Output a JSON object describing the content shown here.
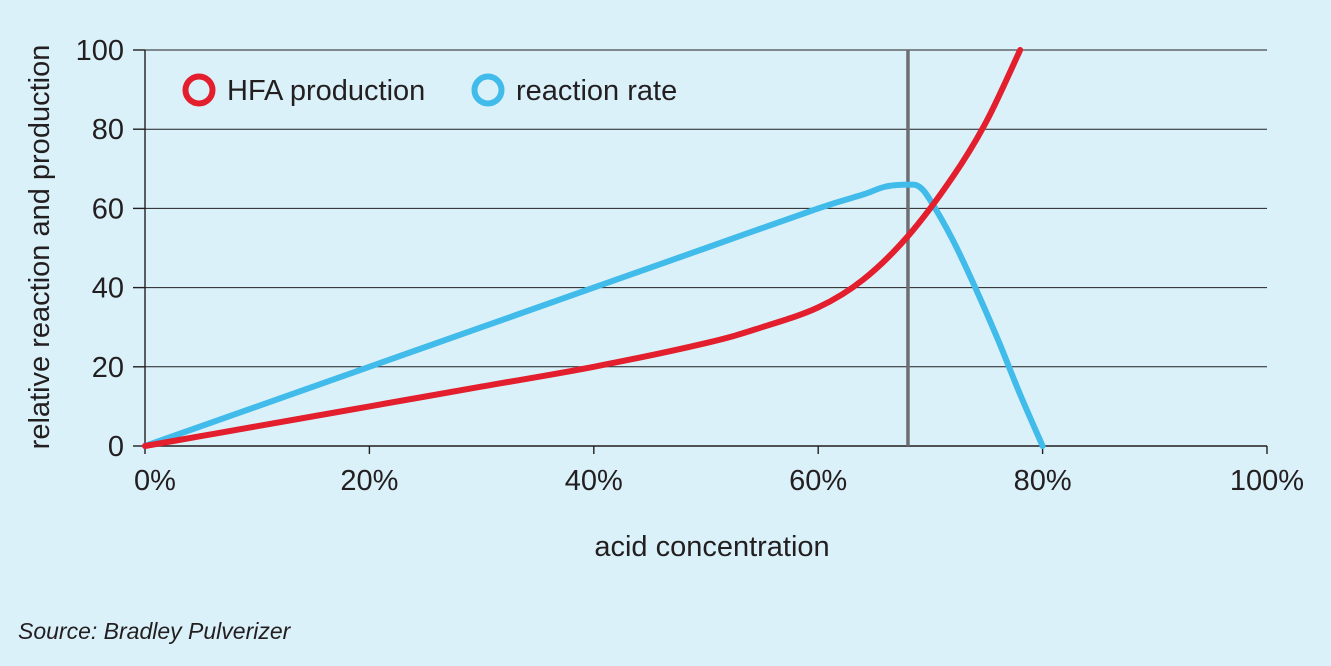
{
  "chart_data": {
    "type": "line",
    "xlabel": "acid concentration",
    "ylabel": "relative reaction and production",
    "xlim": [
      0,
      100
    ],
    "ylim": [
      0,
      100
    ],
    "x_ticks": [
      {
        "value": 0,
        "label": "0%"
      },
      {
        "value": 20,
        "label": "20%"
      },
      {
        "value": 40,
        "label": "40%"
      },
      {
        "value": 60,
        "label": "60%"
      },
      {
        "value": 80,
        "label": "80%"
      },
      {
        "value": 100,
        "label": "100%"
      }
    ],
    "y_ticks": [
      {
        "value": 0,
        "label": "0"
      },
      {
        "value": 20,
        "label": "20"
      },
      {
        "value": 40,
        "label": "40"
      },
      {
        "value": 60,
        "label": "60"
      },
      {
        "value": 80,
        "label": "80"
      },
      {
        "value": 100,
        "label": "100"
      }
    ],
    "grid": "horizontal",
    "legend_position": "top-left",
    "reference_line_x": 68,
    "series": [
      {
        "name": "HFA production",
        "color": "#e31e2d",
        "x": [
          0,
          5,
          10,
          20,
          30,
          40,
          50,
          55,
          60,
          64,
          68,
          72,
          75,
          78
        ],
        "y": [
          0,
          2.5,
          5,
          10,
          15,
          20,
          26,
          30,
          35,
          42,
          53,
          68,
          82,
          100
        ]
      },
      {
        "name": "reaction rate",
        "color": "#40bbea",
        "x": [
          0,
          10,
          20,
          30,
          40,
          50,
          60,
          64,
          66,
          68,
          69,
          70,
          72,
          74,
          76,
          78,
          80
        ],
        "y": [
          0,
          10,
          20,
          30,
          40,
          50,
          60,
          63.5,
          65.5,
          66,
          65.5,
          62,
          52,
          40,
          27,
          13,
          0
        ]
      }
    ]
  },
  "footer": {
    "source": "Source: Bradley Pulverizer"
  }
}
